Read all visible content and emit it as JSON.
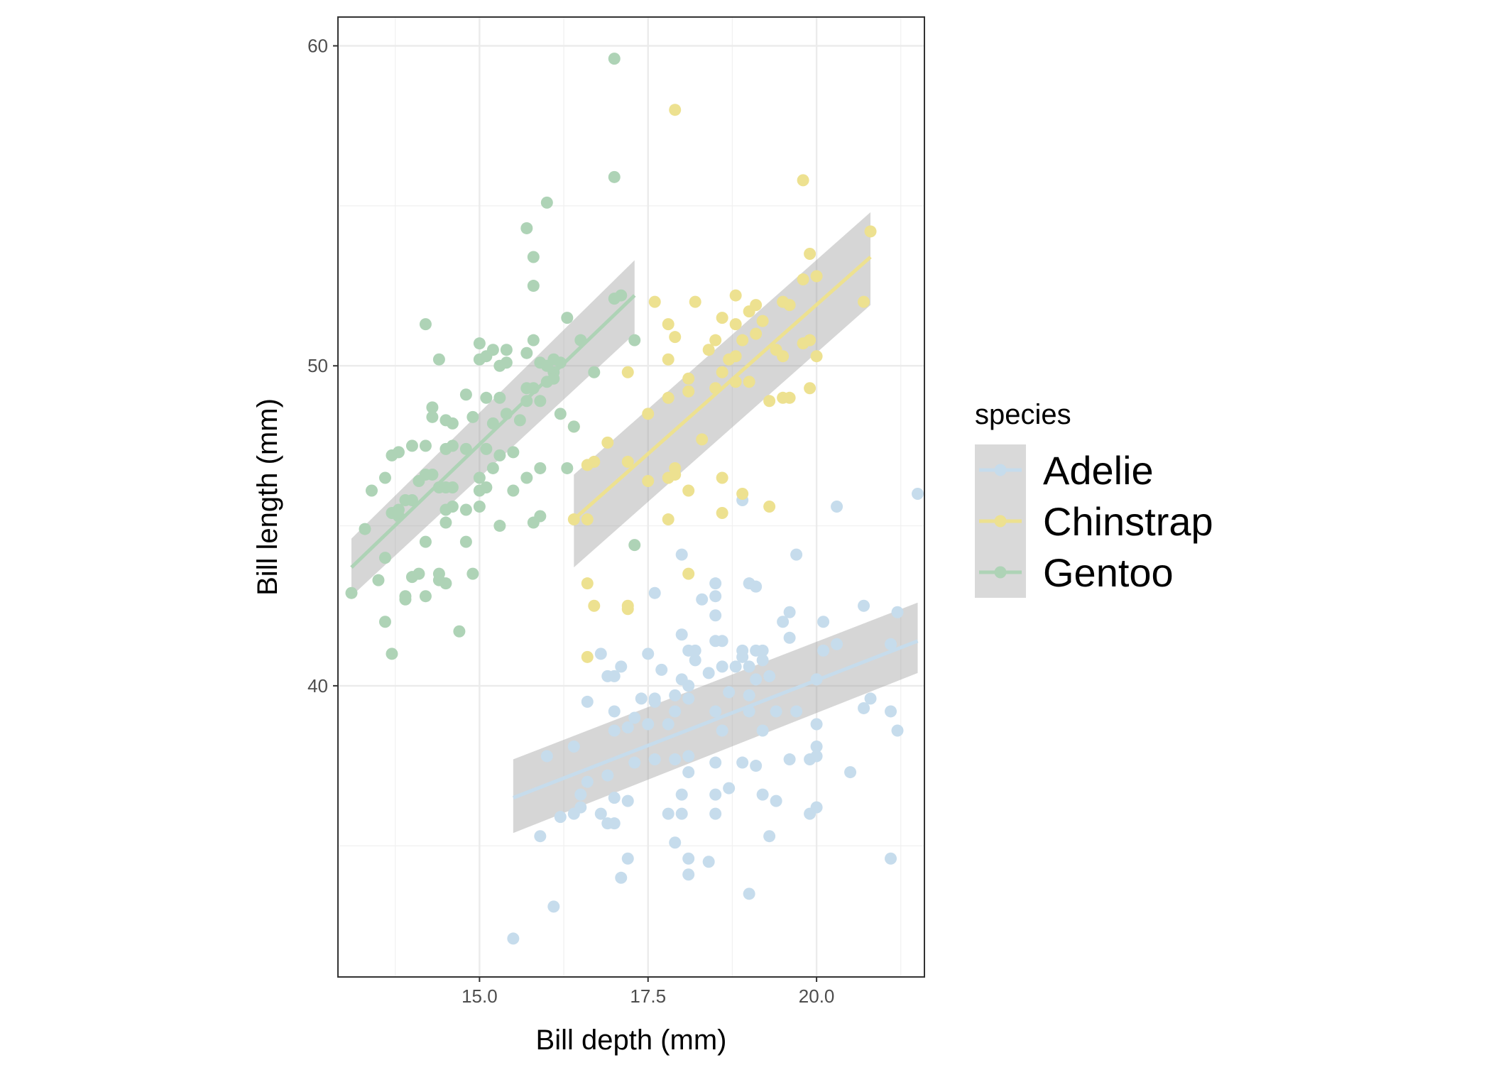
{
  "chart_data": {
    "type": "scatter",
    "xlabel": "Bill depth (mm)",
    "ylabel": "Bill length (mm)",
    "xlim": [
      12.9,
      21.6
    ],
    "ylim": [
      30.9,
      60.9
    ],
    "x_ticks": [
      15.0,
      17.5,
      20.0
    ],
    "x_tick_labels": [
      "15.0",
      "17.5",
      "20.0"
    ],
    "y_ticks": [
      40,
      50,
      60
    ],
    "y_tick_labels": [
      "40",
      "50",
      "60"
    ],
    "grid": true,
    "legend": {
      "title": "species",
      "position": "right"
    },
    "series": [
      {
        "name": "Adelie",
        "color": "#c6dcec",
        "fit": {
          "x": [
            15.5,
            21.5
          ],
          "y": [
            36.5,
            41.4
          ],
          "ci_lo": [
            35.4,
            40.4
          ],
          "ci_hi": [
            37.7,
            42.6
          ]
        },
        "points": [
          [
            15.5,
            32.1
          ],
          [
            16.1,
            33.1
          ],
          [
            17.1,
            34.0
          ],
          [
            18.1,
            34.1
          ],
          [
            18.1,
            34.6
          ],
          [
            18.4,
            34.5
          ],
          [
            17.2,
            34.6
          ],
          [
            19.0,
            33.5
          ],
          [
            17.9,
            35.1
          ],
          [
            21.1,
            34.6
          ],
          [
            15.9,
            35.3
          ],
          [
            16.2,
            35.9
          ],
          [
            16.9,
            35.7
          ],
          [
            17.0,
            35.7
          ],
          [
            16.8,
            36.0
          ],
          [
            16.5,
            36.2
          ],
          [
            16.4,
            36.0
          ],
          [
            18.5,
            36.0
          ],
          [
            17.8,
            36.0
          ],
          [
            18.0,
            36.0
          ],
          [
            19.3,
            35.3
          ],
          [
            19.9,
            36.0
          ],
          [
            19.4,
            36.4
          ],
          [
            20.0,
            36.2
          ],
          [
            17.0,
            36.5
          ],
          [
            17.2,
            36.4
          ],
          [
            18.0,
            36.6
          ],
          [
            18.5,
            36.6
          ],
          [
            18.7,
            36.8
          ],
          [
            19.2,
            36.6
          ],
          [
            16.5,
            36.6
          ],
          [
            16.0,
            37.8
          ],
          [
            16.4,
            38.1
          ],
          [
            16.6,
            37.0
          ],
          [
            16.9,
            37.2
          ],
          [
            17.3,
            37.6
          ],
          [
            17.6,
            37.7
          ],
          [
            18.1,
            37.3
          ],
          [
            18.1,
            37.8
          ],
          [
            17.9,
            37.7
          ],
          [
            18.5,
            37.6
          ],
          [
            18.9,
            37.6
          ],
          [
            19.1,
            37.5
          ],
          [
            19.6,
            37.7
          ],
          [
            19.9,
            37.7
          ],
          [
            20.0,
            37.8
          ],
          [
            20.5,
            37.3
          ],
          [
            17.0,
            38.6
          ],
          [
            17.2,
            38.7
          ],
          [
            17.5,
            38.8
          ],
          [
            17.8,
            38.8
          ],
          [
            17.3,
            39.0
          ],
          [
            17.0,
            39.2
          ],
          [
            17.6,
            39.6
          ],
          [
            17.6,
            39.5
          ],
          [
            17.4,
            39.6
          ],
          [
            17.9,
            39.7
          ],
          [
            18.1,
            39.6
          ],
          [
            18.1,
            40.0
          ],
          [
            17.9,
            39.2
          ],
          [
            18.5,
            39.2
          ],
          [
            18.7,
            39.8
          ],
          [
            19.0,
            39.2
          ],
          [
            19.4,
            39.2
          ],
          [
            19.0,
            39.7
          ],
          [
            18.6,
            38.6
          ],
          [
            19.2,
            38.6
          ],
          [
            19.7,
            39.2
          ],
          [
            20.0,
            38.8
          ],
          [
            20.0,
            38.1
          ],
          [
            20.7,
            39.3
          ],
          [
            20.8,
            39.6
          ],
          [
            21.1,
            39.2
          ],
          [
            21.2,
            38.6
          ],
          [
            16.6,
            39.5
          ],
          [
            16.9,
            40.3
          ],
          [
            17.0,
            40.3
          ],
          [
            17.1,
            40.6
          ],
          [
            17.7,
            40.5
          ],
          [
            18.0,
            40.2
          ],
          [
            18.2,
            40.8
          ],
          [
            18.4,
            40.4
          ],
          [
            18.6,
            40.6
          ],
          [
            18.8,
            40.6
          ],
          [
            18.9,
            40.9
          ],
          [
            19.0,
            40.6
          ],
          [
            19.1,
            40.2
          ],
          [
            19.2,
            40.8
          ],
          [
            19.3,
            40.3
          ],
          [
            20.0,
            40.2
          ],
          [
            16.8,
            41.0
          ],
          [
            17.5,
            41.0
          ],
          [
            18.0,
            41.6
          ],
          [
            18.1,
            41.1
          ],
          [
            18.2,
            41.1
          ],
          [
            18.5,
            41.4
          ],
          [
            18.6,
            41.4
          ],
          [
            18.9,
            41.1
          ],
          [
            19.1,
            41.1
          ],
          [
            19.2,
            41.1
          ],
          [
            19.6,
            41.5
          ],
          [
            19.5,
            42.0
          ],
          [
            20.1,
            41.1
          ],
          [
            20.3,
            41.3
          ],
          [
            20.1,
            42.0
          ],
          [
            17.6,
            42.9
          ],
          [
            18.3,
            42.7
          ],
          [
            18.5,
            42.2
          ],
          [
            18.5,
            42.8
          ],
          [
            18.5,
            43.2
          ],
          [
            19.0,
            43.2
          ],
          [
            19.1,
            43.1
          ],
          [
            19.6,
            42.3
          ],
          [
            18.0,
            44.1
          ],
          [
            19.7,
            44.1
          ],
          [
            20.7,
            42.5
          ],
          [
            21.2,
            42.3
          ],
          [
            21.1,
            41.3
          ],
          [
            18.9,
            45.8
          ],
          [
            20.3,
            45.6
          ],
          [
            21.5,
            46.0
          ]
        ]
      },
      {
        "name": "Chinstrap",
        "color": "#ede190",
        "fit": {
          "x": [
            16.4,
            20.8
          ],
          "y": [
            45.2,
            53.4
          ],
          "ci_lo": [
            43.7,
            51.9
          ],
          "ci_hi": [
            46.6,
            54.8
          ]
        },
        "points": [
          [
            16.6,
            40.9
          ],
          [
            16.7,
            42.5
          ],
          [
            17.2,
            42.5
          ],
          [
            17.2,
            42.4
          ],
          [
            16.6,
            43.2
          ],
          [
            18.1,
            43.5
          ],
          [
            16.4,
            45.2
          ],
          [
            16.6,
            45.2
          ],
          [
            17.5,
            46.4
          ],
          [
            17.8,
            45.2
          ],
          [
            18.1,
            46.1
          ],
          [
            18.6,
            45.4
          ],
          [
            18.9,
            46.0
          ],
          [
            19.3,
            45.6
          ],
          [
            16.6,
            46.9
          ],
          [
            16.7,
            47.0
          ],
          [
            16.9,
            47.6
          ],
          [
            17.2,
            47.0
          ],
          [
            17.8,
            46.5
          ],
          [
            17.9,
            46.6
          ],
          [
            17.9,
            46.8
          ],
          [
            18.3,
            47.7
          ],
          [
            18.6,
            46.5
          ],
          [
            16.4,
            48.1
          ],
          [
            17.5,
            48.5
          ],
          [
            17.2,
            49.8
          ],
          [
            17.8,
            49.0
          ],
          [
            18.1,
            49.6
          ],
          [
            18.1,
            49.2
          ],
          [
            18.5,
            49.3
          ],
          [
            18.6,
            49.8
          ],
          [
            18.8,
            49.5
          ],
          [
            19.0,
            49.5
          ],
          [
            19.3,
            48.9
          ],
          [
            19.5,
            49.0
          ],
          [
            19.6,
            49.0
          ],
          [
            19.9,
            49.3
          ],
          [
            17.8,
            50.2
          ],
          [
            17.9,
            50.9
          ],
          [
            18.4,
            50.5
          ],
          [
            18.5,
            50.8
          ],
          [
            18.7,
            50.2
          ],
          [
            18.8,
            50.3
          ],
          [
            18.9,
            50.8
          ],
          [
            19.1,
            51.0
          ],
          [
            19.2,
            51.4
          ],
          [
            19.4,
            50.5
          ],
          [
            19.5,
            50.3
          ],
          [
            19.8,
            50.7
          ],
          [
            19.9,
            50.8
          ],
          [
            20.0,
            50.3
          ],
          [
            17.8,
            51.3
          ],
          [
            18.6,
            51.5
          ],
          [
            18.8,
            51.3
          ],
          [
            19.0,
            51.7
          ],
          [
            19.1,
            51.9
          ],
          [
            19.6,
            51.9
          ],
          [
            17.6,
            52.0
          ],
          [
            18.2,
            52.0
          ],
          [
            18.8,
            52.2
          ],
          [
            19.5,
            52.0
          ],
          [
            19.8,
            52.7
          ],
          [
            19.9,
            53.5
          ],
          [
            20.0,
            52.8
          ],
          [
            20.7,
            52.0
          ],
          [
            20.8,
            54.2
          ],
          [
            19.8,
            55.8
          ],
          [
            17.9,
            58.0
          ]
        ]
      },
      {
        "name": "Gentoo",
        "color": "#aed3b6",
        "fit": {
          "x": [
            13.1,
            17.3
          ],
          "y": [
            43.7,
            52.2
          ],
          "ci_lo": [
            42.8,
            51.0
          ],
          "ci_hi": [
            44.6,
            53.3
          ]
        },
        "points": [
          [
            13.1,
            42.9
          ],
          [
            13.7,
            41.0
          ],
          [
            13.6,
            42.0
          ],
          [
            13.9,
            42.7
          ],
          [
            13.9,
            42.8
          ],
          [
            14.2,
            42.8
          ],
          [
            14.5,
            43.2
          ],
          [
            14.4,
            43.3
          ],
          [
            14.1,
            43.5
          ],
          [
            14.0,
            43.4
          ],
          [
            14.4,
            43.5
          ],
          [
            14.7,
            41.7
          ],
          [
            14.2,
            44.5
          ],
          [
            14.9,
            43.5
          ],
          [
            14.8,
            45.5
          ],
          [
            14.8,
            44.5
          ],
          [
            13.3,
            44.9
          ],
          [
            13.6,
            44.0
          ],
          [
            13.5,
            43.3
          ],
          [
            13.4,
            46.1
          ],
          [
            13.6,
            46.5
          ],
          [
            13.7,
            45.4
          ],
          [
            13.8,
            45.3
          ],
          [
            13.8,
            45.5
          ],
          [
            13.9,
            45.8
          ],
          [
            14.0,
            45.8
          ],
          [
            14.1,
            46.4
          ],
          [
            14.2,
            46.6
          ],
          [
            14.3,
            46.6
          ],
          [
            14.4,
            46.2
          ],
          [
            14.5,
            45.1
          ],
          [
            14.5,
            45.5
          ],
          [
            14.6,
            45.6
          ],
          [
            14.5,
            46.2
          ],
          [
            14.6,
            46.2
          ],
          [
            15.0,
            45.6
          ],
          [
            15.0,
            46.1
          ],
          [
            15.0,
            46.5
          ],
          [
            15.1,
            46.2
          ],
          [
            15.3,
            45.0
          ],
          [
            15.2,
            46.8
          ],
          [
            15.3,
            47.2
          ],
          [
            15.5,
            46.1
          ],
          [
            15.7,
            46.5
          ],
          [
            15.9,
            46.8
          ],
          [
            16.3,
            46.8
          ],
          [
            15.8,
            45.1
          ],
          [
            15.9,
            45.3
          ],
          [
            13.7,
            47.2
          ],
          [
            13.8,
            47.3
          ],
          [
            14.0,
            47.5
          ],
          [
            14.2,
            47.5
          ],
          [
            14.5,
            47.4
          ],
          [
            14.6,
            47.5
          ],
          [
            14.8,
            47.4
          ],
          [
            15.1,
            47.4
          ],
          [
            15.5,
            47.3
          ],
          [
            15.2,
            48.2
          ],
          [
            15.4,
            48.5
          ],
          [
            15.6,
            48.3
          ],
          [
            15.7,
            48.9
          ],
          [
            15.9,
            48.9
          ],
          [
            16.2,
            48.5
          ],
          [
            16.4,
            48.1
          ],
          [
            14.3,
            48.7
          ],
          [
            14.3,
            48.4
          ],
          [
            14.5,
            48.3
          ],
          [
            14.6,
            48.2
          ],
          [
            14.8,
            49.1
          ],
          [
            14.9,
            48.4
          ],
          [
            15.1,
            49.0
          ],
          [
            15.3,
            49.0
          ],
          [
            15.7,
            49.3
          ],
          [
            15.8,
            49.3
          ],
          [
            16.0,
            49.5
          ],
          [
            16.1,
            49.6
          ],
          [
            14.4,
            50.2
          ],
          [
            15.0,
            50.2
          ],
          [
            15.1,
            50.3
          ],
          [
            15.2,
            50.5
          ],
          [
            15.3,
            50.0
          ],
          [
            15.4,
            50.1
          ],
          [
            15.4,
            50.5
          ],
          [
            15.7,
            50.4
          ],
          [
            15.8,
            50.8
          ],
          [
            15.9,
            50.1
          ],
          [
            16.0,
            50.0
          ],
          [
            16.1,
            49.8
          ],
          [
            16.1,
            50.2
          ],
          [
            16.2,
            50.1
          ],
          [
            15.0,
            50.7
          ],
          [
            16.5,
            50.8
          ],
          [
            16.7,
            49.8
          ],
          [
            17.3,
            50.8
          ],
          [
            14.2,
            51.3
          ],
          [
            16.3,
            51.5
          ],
          [
            17.0,
            52.1
          ],
          [
            17.1,
            52.2
          ],
          [
            15.8,
            52.5
          ],
          [
            15.8,
            53.4
          ],
          [
            15.7,
            54.3
          ],
          [
            16.0,
            55.1
          ],
          [
            17.0,
            55.9
          ],
          [
            17.3,
            44.4
          ],
          [
            17.0,
            59.6
          ]
        ]
      }
    ]
  }
}
